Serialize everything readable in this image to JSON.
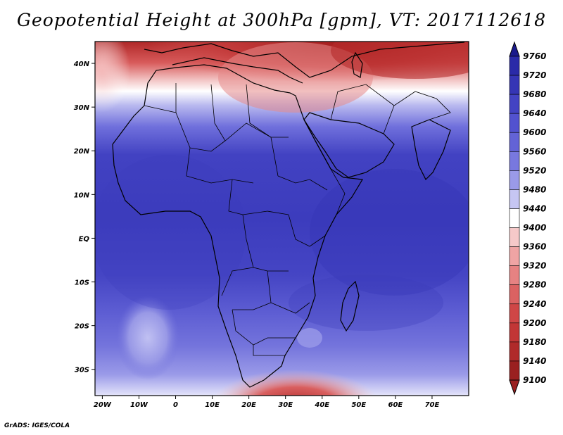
{
  "title": "Geopotential Height at 300hPa [gpm], VT: 2017112618",
  "credit": "GrADS: IGES/COLA",
  "map": {
    "lat_labels": [
      "40N",
      "30N",
      "20N",
      "10N",
      "EQ",
      "10S",
      "20S",
      "30S"
    ],
    "lon_labels": [
      "20W",
      "10W",
      "0",
      "10E",
      "20E",
      "30E",
      "40E",
      "50E",
      "60E",
      "70E"
    ],
    "lon_range": [
      -22,
      80
    ],
    "lat_range": [
      -36,
      45
    ]
  },
  "colorbar": {
    "levels": [
      "9760",
      "9720",
      "9680",
      "9640",
      "9600",
      "9560",
      "9520",
      "9480",
      "9440",
      "9400",
      "9360",
      "9320",
      "9280",
      "9240",
      "9200",
      "9180",
      "9140",
      "9100"
    ],
    "colors": [
      "#1a1a8c",
      "#2a2aa8",
      "#3535b5",
      "#4343c3",
      "#5252cf",
      "#6363d6",
      "#7878df",
      "#9a9ae8",
      "#c6c6f3",
      "#ffffff",
      "#f6c9c9",
      "#efa4a4",
      "#e68282",
      "#db6262",
      "#cf4646",
      "#c23636",
      "#b02a2a",
      "#9a2020"
    ]
  }
}
